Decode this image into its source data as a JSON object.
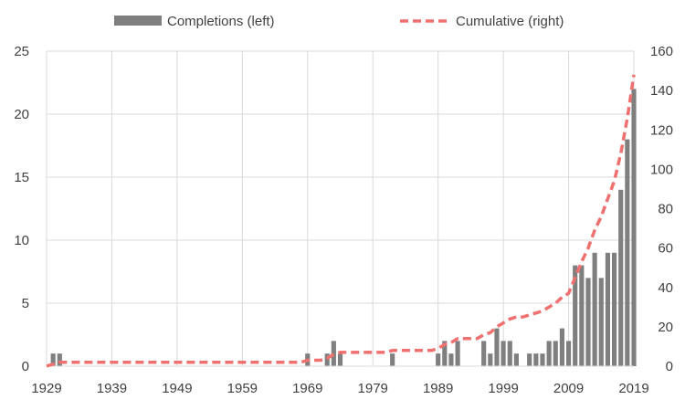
{
  "chart_data": {
    "type": "bar+line",
    "legend_position": "top",
    "grid": true,
    "x_tick_labels": [
      "1929",
      "1939",
      "1949",
      "1959",
      "1969",
      "1979",
      "1989",
      "1999",
      "2009",
      "2019"
    ],
    "x_range": [
      1929,
      2019
    ],
    "left_axis": {
      "ticks": [
        "0",
        "5",
        "10",
        "15",
        "20",
        "25"
      ],
      "range": [
        0,
        25
      ]
    },
    "right_axis": {
      "ticks": [
        "0",
        "20",
        "40",
        "60",
        "80",
        "100",
        "120",
        "140",
        "160"
      ],
      "range": [
        0,
        160
      ]
    },
    "colors": {
      "bars": "#7f7f7f",
      "line": "#f07070",
      "grid": "#d9d9d9",
      "text": "#404040"
    },
    "series": [
      {
        "name": "Completions (left)",
        "type": "bar",
        "axis": "left",
        "points": [
          [
            1930,
            1
          ],
          [
            1931,
            1
          ],
          [
            1969,
            1
          ],
          [
            1972,
            1
          ],
          [
            1973,
            2
          ],
          [
            1974,
            1
          ],
          [
            1982,
            1
          ],
          [
            1989,
            1
          ],
          [
            1990,
            2
          ],
          [
            1991,
            1
          ],
          [
            1992,
            2
          ],
          [
            1996,
            2
          ],
          [
            1997,
            1
          ],
          [
            1998,
            3
          ],
          [
            1999,
            2
          ],
          [
            2000,
            2
          ],
          [
            2001,
            1
          ],
          [
            2003,
            1
          ],
          [
            2004,
            1
          ],
          [
            2005,
            1
          ],
          [
            2006,
            2
          ],
          [
            2007,
            2
          ],
          [
            2008,
            3
          ],
          [
            2009,
            2
          ],
          [
            2010,
            8
          ],
          [
            2011,
            8
          ],
          [
            2012,
            7
          ],
          [
            2013,
            9
          ],
          [
            2014,
            7
          ],
          [
            2015,
            9
          ],
          [
            2016,
            9
          ],
          [
            2017,
            14
          ],
          [
            2018,
            18
          ],
          [
            2019,
            22
          ]
        ]
      },
      {
        "name": "Cumulative (right)",
        "type": "line",
        "style": "dashed",
        "axis": "right",
        "points": [
          [
            1929,
            0
          ],
          [
            1930,
            1
          ],
          [
            1931,
            2
          ],
          [
            1968,
            2
          ],
          [
            1969,
            3
          ],
          [
            1971,
            3
          ],
          [
            1972,
            4
          ],
          [
            1973,
            6
          ],
          [
            1974,
            7
          ],
          [
            1981,
            7
          ],
          [
            1982,
            8
          ],
          [
            1988,
            8
          ],
          [
            1989,
            9
          ],
          [
            1990,
            11
          ],
          [
            1991,
            12
          ],
          [
            1992,
            14
          ],
          [
            1995,
            14
          ],
          [
            1996,
            16
          ],
          [
            1997,
            17
          ],
          [
            1998,
            20
          ],
          [
            1999,
            22
          ],
          [
            2000,
            24
          ],
          [
            2001,
            25
          ],
          [
            2002,
            25
          ],
          [
            2003,
            26
          ],
          [
            2004,
            27
          ],
          [
            2005,
            28
          ],
          [
            2006,
            30
          ],
          [
            2007,
            32
          ],
          [
            2008,
            35
          ],
          [
            2009,
            37
          ],
          [
            2010,
            45
          ],
          [
            2011,
            53
          ],
          [
            2012,
            60
          ],
          [
            2013,
            69
          ],
          [
            2014,
            76
          ],
          [
            2015,
            85
          ],
          [
            2016,
            94
          ],
          [
            2017,
            108
          ],
          [
            2018,
            126
          ],
          [
            2019,
            148
          ]
        ]
      }
    ]
  }
}
